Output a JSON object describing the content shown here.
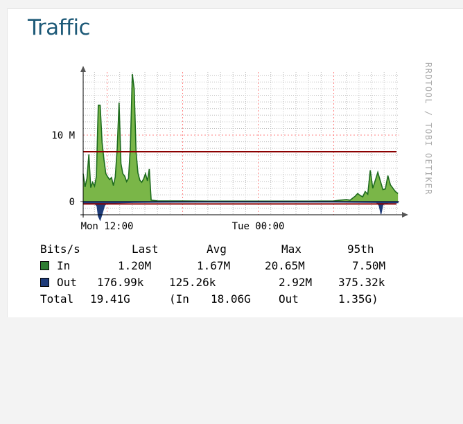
{
  "title": "Traffic",
  "watermark": "RRDTOOL / TOBI OETIKER",
  "chart_data": {
    "type": "area",
    "y_tick_labels": [
      {
        "label": "10 M",
        "value": 10000000
      },
      {
        "label": "0",
        "value": 0
      }
    ],
    "x_tick_labels": [
      {
        "label": "Mon 12:00",
        "hour": 12
      },
      {
        "label": "Tue 00:00",
        "hour": 24
      }
    ],
    "ylim": [
      -2000000,
      19500000
    ],
    "xlim_hours": [
      10.1,
      35.2
    ],
    "grid": true,
    "colors": {
      "in": "#7ab648",
      "in_line": "#1e6b1e",
      "out": "#1f3c7a",
      "p95": "#8b0000"
    },
    "series": [
      {
        "name": "In",
        "hours": [
          10.1,
          10.25,
          10.4,
          10.55,
          10.7,
          10.85,
          11.0,
          11.15,
          11.3,
          11.45,
          11.6,
          11.75,
          11.9,
          12.05,
          12.2,
          12.35,
          12.5,
          12.65,
          12.8,
          12.95,
          13.1,
          13.25,
          13.4,
          13.55,
          13.7,
          13.85,
          14.0,
          14.15,
          14.3,
          14.45,
          14.6,
          14.75,
          14.9,
          15.05,
          15.2,
          15.35,
          15.5,
          16.0,
          18.0,
          20.0,
          22.0,
          24.0,
          26.0,
          28.0,
          30.0,
          30.5,
          31.0,
          31.3,
          31.5,
          31.7,
          31.9,
          32.1,
          32.3,
          32.5,
          32.7,
          32.9,
          33.1,
          33.3,
          33.5,
          33.7,
          33.9,
          34.1,
          34.3,
          34.5,
          34.7,
          34.9,
          35.1
        ],
        "values": [
          4200000,
          2200000,
          3500000,
          7100000,
          2100000,
          2900000,
          2300000,
          3800000,
          14500000,
          14500000,
          8900000,
          6300000,
          4200000,
          3700000,
          3300000,
          3600000,
          2400000,
          3700000,
          8000000,
          14900000,
          5700000,
          4200000,
          3800000,
          3000000,
          3500000,
          8200000,
          19200000,
          17000000,
          7500000,
          4300000,
          3200000,
          2900000,
          3400000,
          4200000,
          3100000,
          4900000,
          200000,
          100000,
          80000,
          60000,
          60000,
          60000,
          60000,
          60000,
          80000,
          200000,
          300000,
          200000,
          500000,
          800000,
          1200000,
          900000,
          700000,
          1500000,
          1100000,
          4700000,
          2000000,
          3200000,
          4400000,
          3100000,
          1800000,
          1900000,
          3900000,
          2500000,
          2000000,
          1500000,
          1200000
        ]
      },
      {
        "name": "Out",
        "hours": [
          10.1,
          10.8,
          11.0,
          11.2,
          11.3,
          11.45,
          11.6,
          11.8,
          12.0,
          13.0,
          14.0,
          16.0,
          20.0,
          24.0,
          30.0,
          33.4,
          33.6,
          33.75,
          33.9,
          34.3,
          35.1
        ],
        "values": [
          -200000,
          -250000,
          -300000,
          -700000,
          -2200000,
          -2800000,
          -1900000,
          -600000,
          -250000,
          -200000,
          -150000,
          -120000,
          -100000,
          -100000,
          -100000,
          -150000,
          -600000,
          -1900000,
          -500000,
          -200000,
          -180000
        ]
      }
    ],
    "p95_lines": [
      {
        "name": "95th In",
        "value": 7500000
      },
      {
        "name": "95th Out",
        "value": -375320
      }
    ],
    "legend": {
      "headers": [
        "Bits/s",
        "Last",
        "Avg",
        "Max",
        "95th"
      ],
      "rows": [
        {
          "label": "In",
          "color": "#2e7d32",
          "last": "1.20M",
          "avg": "1.67M",
          "max": "20.65M",
          "p95": "7.50M"
        },
        {
          "label": "Out",
          "color": "#1f3c7a",
          "last": "176.99k",
          "avg": "125.26k",
          "max": "2.92M",
          "p95": "375.32k"
        }
      ],
      "total": {
        "label": "Total",
        "value": "19.41G",
        "open": "(In",
        "in": "18.06G",
        "out_label": "Out",
        "out": "1.35G)"
      }
    }
  }
}
